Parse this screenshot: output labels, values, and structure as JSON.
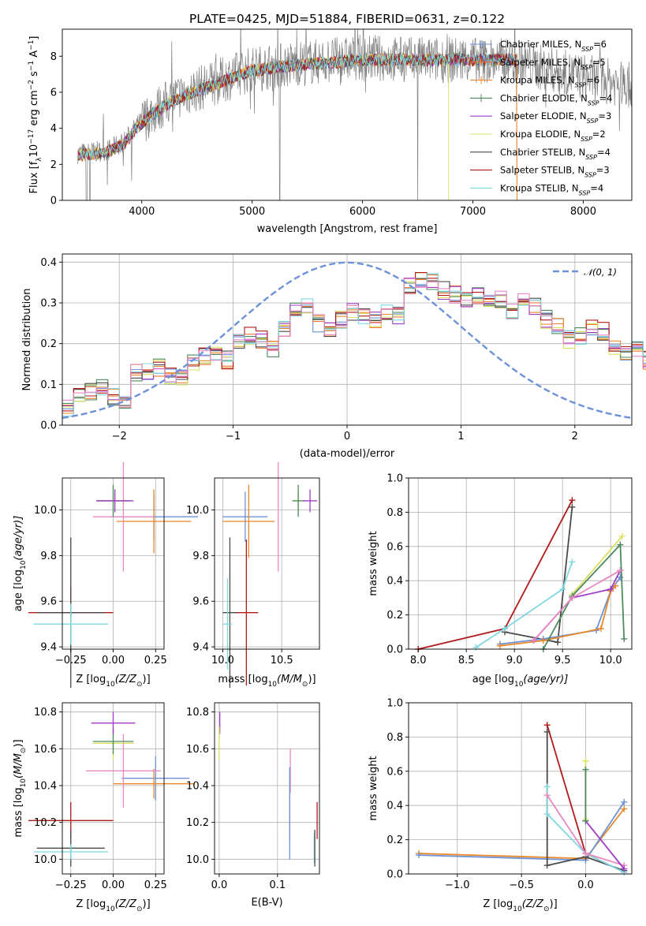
{
  "colors": {
    "chabrier_miles": "#6d92d8",
    "salpeter_miles": "#ee7733",
    "kroupa_miles": "#e8882a",
    "chabrier_elodie": "#4c8a5e",
    "salpeter_elodie": "#a03bc8",
    "kroupa_elodie": "#d8e060",
    "chabrier_stelib": "#4a4a4a",
    "salpeter_stelib": "#b01a1a",
    "kroupa_stelib": "#80d8e0",
    "pink": "#e888c0",
    "gaussian": "#6d92d8",
    "spectrum": "#808080",
    "grid": "#b0b0b0"
  },
  "legend_entries": [
    {
      "key": "chabrier_miles",
      "label": "Chabrier MILES, N",
      "sub": "SSP",
      "tail": "=6"
    },
    {
      "key": "salpeter_miles",
      "label": "Salpeter MILES, N",
      "sub": "SSP",
      "tail": "=5"
    },
    {
      "key": "kroupa_miles",
      "label": "Kroupa MILES, N",
      "sub": "SSP",
      "tail": "=6"
    },
    {
      "key": "chabrier_elodie",
      "label": "Chabrier ELODIE, N",
      "sub": "SSP",
      "tail": "=4"
    },
    {
      "key": "salpeter_elodie",
      "label": "Salpeter ELODIE, N",
      "sub": "SSP",
      "tail": "=3"
    },
    {
      "key": "kroupa_elodie",
      "label": "Kroupa ELODIE, N",
      "sub": "SSP",
      "tail": "=2"
    },
    {
      "key": "chabrier_stelib",
      "label": "Chabrier STELIB, N",
      "sub": "SSP",
      "tail": "=4"
    },
    {
      "key": "salpeter_stelib",
      "label": "Salpeter STELIB, N",
      "sub": "SSP",
      "tail": "=3"
    },
    {
      "key": "kroupa_stelib",
      "label": "Kroupa STELIB, N",
      "sub": "SSP",
      "tail": "=4"
    }
  ],
  "chart_data": [
    {
      "id": "spectrum",
      "type": "line",
      "title": "PLATE=0425, MJD=51884, FIBERID=0631, z=0.122",
      "xlabel": "wavelength [Angstrom, rest frame]",
      "ylabel_parts": [
        "Flux [f",
        "λ",
        "10",
        "−17",
        " erg cm",
        "−2",
        " s",
        "−1",
        " A",
        "−1",
        "]"
      ],
      "xlim": [
        3280,
        8440
      ],
      "ylim": [
        0,
        9.5
      ],
      "xticks": [
        4000,
        5000,
        6000,
        7000,
        8000
      ],
      "yticks": [
        0,
        2,
        4,
        6,
        8
      ],
      "grid": false,
      "legend": "upper right",
      "continuum_anchors": [
        [
          3420,
          2.6
        ],
        [
          3600,
          2.7
        ],
        [
          3700,
          2.8
        ],
        [
          3850,
          3.3
        ],
        [
          3950,
          4.1
        ],
        [
          4100,
          4.9
        ],
        [
          4300,
          5.7
        ],
        [
          4600,
          6.4
        ],
        [
          5000,
          7.3
        ],
        [
          5400,
          7.6
        ],
        [
          6000,
          7.9
        ],
        [
          6500,
          7.8
        ],
        [
          7000,
          7.8
        ],
        [
          7400,
          7.7
        ],
        [
          7800,
          7.1
        ],
        [
          8400,
          6.4
        ]
      ],
      "model_anchors": [
        [
          3420,
          2.5
        ],
        [
          3600,
          2.6
        ],
        [
          3700,
          2.7
        ],
        [
          3850,
          3.2
        ],
        [
          3950,
          4.0
        ],
        [
          4100,
          4.8
        ],
        [
          4300,
          5.6
        ],
        [
          4600,
          6.3
        ],
        [
          5000,
          7.2
        ],
        [
          5400,
          7.5
        ],
        [
          6000,
          7.8
        ],
        [
          6500,
          7.8
        ],
        [
          7000,
          7.8
        ],
        [
          7400,
          7.8
        ]
      ],
      "model_end_wavelength": {
        "kroupa_elodie": 6780,
        "kroupa_miles": 7400,
        "salpeter_miles": 7400
      }
    },
    {
      "id": "residuals",
      "type": "line",
      "xlabel": "(data-model)/error",
      "ylabel": "Normed distribution",
      "xlim": [
        -2.5,
        2.5
      ],
      "ylim": [
        0,
        0.42
      ],
      "xticks": [
        -2,
        -1,
        0,
        1,
        2
      ],
      "yticks": [
        0.0,
        0.1,
        0.2,
        0.3,
        0.4
      ],
      "grid": true,
      "legend": "upper right",
      "legend_label": "𝒩(0, 1)",
      "bin_width": 0.1,
      "bin_start": -2.5,
      "base_histogram": [
        0.04,
        0.07,
        0.08,
        0.09,
        0.07,
        0.06,
        0.13,
        0.13,
        0.14,
        0.12,
        0.12,
        0.15,
        0.17,
        0.18,
        0.16,
        0.2,
        0.22,
        0.21,
        0.19,
        0.24,
        0.28,
        0.29,
        0.25,
        0.24,
        0.26,
        0.28,
        0.27,
        0.26,
        0.28,
        0.27,
        0.34,
        0.36,
        0.35,
        0.33,
        0.32,
        0.31,
        0.32,
        0.3,
        0.31,
        0.28,
        0.3,
        0.29,
        0.26,
        0.24,
        0.21,
        0.22,
        0.24,
        0.23,
        0.19,
        0.18,
        0.19,
        0.16,
        0.14,
        0.13,
        0.12,
        0.12,
        0.11,
        0.12,
        0.1,
        0.09,
        0.07,
        0.07,
        0.07,
        0.07,
        0.06,
        0.06,
        0.05,
        0.05,
        0.05,
        0.05,
        0.05,
        0.05
      ]
    },
    {
      "id": "age_vs_Z",
      "type": "scatter",
      "xlabel_parts": [
        "Z [log",
        "10",
        "(Z/Z",
        "⊙",
        ")]"
      ],
      "ylabel_parts": [
        "age  [log",
        "10",
        "(age/yr)]"
      ],
      "xlim": [
        -0.3,
        0.3
      ],
      "ylim": [
        9.39,
        10.14
      ],
      "xticks": [
        -0.25,
        0.0,
        0.25
      ],
      "xtick_labels": [
        "−0.25",
        "0.00",
        "0.25"
      ],
      "yticks": [
        9.4,
        9.6,
        9.8,
        10.0
      ],
      "grid": true,
      "points": [
        {
          "key": "chabrier_miles",
          "x": 0.24,
          "y": 9.97,
          "xerr": 0.26,
          "yerr": 0.1
        },
        {
          "key": "kroupa_miles",
          "x": 0.24,
          "y": 9.95,
          "xerr": 0.22,
          "yerr": 0.14
        },
        {
          "key": "pink",
          "x": 0.06,
          "y": 9.97,
          "xerr": 0.18,
          "yerr": 0.24
        },
        {
          "key": "kroupa_elodie",
          "x": 0.0,
          "y": 10.04,
          "xerr": 0.1,
          "yerr": 0.06
        },
        {
          "key": "chabrier_elodie",
          "x": 0.0,
          "y": 10.04,
          "xerr": 0.1,
          "yerr": 0.07
        },
        {
          "key": "salpeter_elodie",
          "x": 0.01,
          "y": 10.04,
          "xerr": 0.11,
          "yerr": 0.05
        },
        {
          "key": "salpeter_stelib",
          "x": -0.25,
          "y": 9.55,
          "xerr": 0.25,
          "yerr": 0.11
        },
        {
          "key": "chabrier_stelib",
          "x": -0.25,
          "y": 9.55,
          "xerr": 0.2,
          "yerr": 0.33
        },
        {
          "key": "kroupa_stelib",
          "x": -0.25,
          "y": 9.5,
          "xerr": 0.22,
          "yerr": 0.09
        }
      ]
    },
    {
      "id": "age_vs_mass",
      "type": "scatter",
      "xlabel_parts": [
        "mass [log",
        "10",
        "(M/M",
        "⊙",
        ")]"
      ],
      "xlim": [
        9.93,
        10.82
      ],
      "ylim": [
        9.39,
        10.14
      ],
      "xticks": [
        10.0,
        10.5
      ],
      "xtick_labels": [
        "10.0",
        "10.5"
      ],
      "yticks": [
        9.4,
        9.6,
        9.8,
        10.0
      ],
      "grid": true,
      "points": [
        {
          "key": "chabrier_miles",
          "x": 10.19,
          "y": 9.97,
          "xerr": 0.19,
          "yerr": 0.11
        },
        {
          "key": "kroupa_miles",
          "x": 10.22,
          "y": 9.95,
          "xerr": 0.22,
          "yerr": 0.16
        },
        {
          "key": "pink",
          "x": 10.47,
          "y": 9.97,
          "xerr": 0.0,
          "yerr": 0.24
        },
        {
          "key": "kroupa_elodie",
          "x": 10.64,
          "y": 10.04,
          "xerr": 0.05,
          "yerr": 0.06
        },
        {
          "key": "chabrier_elodie",
          "x": 10.64,
          "y": 10.04,
          "xerr": 0.05,
          "yerr": 0.07
        },
        {
          "key": "salpeter_elodie",
          "x": 10.74,
          "y": 10.04,
          "xerr": 0.06,
          "yerr": 0.05
        },
        {
          "key": "salpeter_stelib",
          "x": 10.2,
          "y": 9.55,
          "xerr": 0.1,
          "yerr": 0.32
        },
        {
          "key": "chabrier_stelib",
          "x": 10.06,
          "y": 9.55,
          "xerr": 0.06,
          "yerr": 0.33
        },
        {
          "key": "kroupa_stelib",
          "x": 10.04,
          "y": 9.5,
          "xerr": 0.04,
          "yerr": 0.2
        }
      ]
    },
    {
      "id": "weight_vs_age",
      "type": "line",
      "xlabel_parts": [
        "age  [log",
        "10",
        "(age/yr)]"
      ],
      "ylabel": "mass weight",
      "xlim": [
        7.9,
        10.22
      ],
      "ylim": [
        0,
        1.0
      ],
      "xticks": [
        8.0,
        8.5,
        9.0,
        9.5,
        10.0
      ],
      "xtick_labels": [
        "8.0",
        "8.5",
        "9.0",
        "9.5",
        "10.0"
      ],
      "yticks": [
        0.0,
        0.2,
        0.4,
        0.6,
        0.8,
        1.0
      ],
      "grid": true,
      "series": [
        {
          "key": "salpeter_stelib",
          "x": [
            8.0,
            8.9,
            9.6
          ],
          "y": [
            0.0,
            0.12,
            0.87
          ]
        },
        {
          "key": "chabrier_stelib",
          "x": [
            8.9,
            9.45,
            9.6
          ],
          "y": [
            0.1,
            0.04,
            0.83
          ]
        },
        {
          "key": "kroupa_stelib",
          "x": [
            8.6,
            8.9,
            9.5,
            9.6
          ],
          "y": [
            0.01,
            0.12,
            0.35,
            0.51
          ]
        },
        {
          "key": "chabrier_miles",
          "x": [
            8.85,
            9.3,
            9.85,
            10.0,
            10.1
          ],
          "y": [
            0.03,
            0.06,
            0.11,
            0.34,
            0.42
          ]
        },
        {
          "key": "kroupa_miles",
          "x": [
            8.85,
            9.3,
            9.9,
            10.0,
            10.05
          ],
          "y": [
            0.02,
            0.05,
            0.12,
            0.34,
            0.37
          ]
        },
        {
          "key": "salpeter_elodie",
          "x": [
            9.2,
            9.6,
            10.0,
            10.1
          ],
          "y": [
            0.05,
            0.3,
            0.35,
            0.46
          ]
        },
        {
          "key": "kroupa_elodie",
          "x": [
            9.6,
            10.12
          ],
          "y": [
            0.32,
            0.66
          ]
        },
        {
          "key": "chabrier_elodie",
          "x": [
            9.3,
            9.6,
            10.1,
            10.14
          ],
          "y": [
            0.0,
            0.31,
            0.61,
            0.06
          ]
        },
        {
          "key": "pink",
          "x": [
            9.2,
            9.6,
            10.1
          ],
          "y": [
            0.05,
            0.3,
            0.46
          ]
        }
      ]
    },
    {
      "id": "mass_vs_Z",
      "type": "scatter",
      "xlabel_parts": [
        "Z [log",
        "10",
        "(Z/Z",
        "⊙",
        ")]"
      ],
      "ylabel_parts": [
        "mass [log",
        "10",
        "(M/M",
        "⊙",
        ")]"
      ],
      "xlim": [
        -0.3,
        0.3
      ],
      "ylim": [
        9.92,
        10.85
      ],
      "xticks": [
        -0.25,
        0.0,
        0.25
      ],
      "xtick_labels": [
        "−0.25",
        "0.00",
        "0.25"
      ],
      "yticks": [
        10.0,
        10.2,
        10.4,
        10.6,
        10.8
      ],
      "grid": true,
      "points": [
        {
          "key": "chabrier_miles",
          "x": 0.25,
          "y": 10.44,
          "xerr": 0.2,
          "yerr": 0.12
        },
        {
          "key": "kroupa_miles",
          "x": 0.24,
          "y": 10.41,
          "xerr": 0.24,
          "yerr": 0.08
        },
        {
          "key": "pink",
          "x": 0.06,
          "y": 10.48,
          "xerr": 0.22,
          "yerr": 0.2
        },
        {
          "key": "kroupa_elodie",
          "x": 0.0,
          "y": 10.63,
          "xerr": 0.12,
          "yerr": 0.09
        },
        {
          "key": "chabrier_elodie",
          "x": 0.0,
          "y": 10.64,
          "xerr": 0.12,
          "yerr": 0.07
        },
        {
          "key": "salpeter_elodie",
          "x": 0.0,
          "y": 10.74,
          "xerr": 0.13,
          "yerr": 0.06
        },
        {
          "key": "salpeter_stelib",
          "x": -0.25,
          "y": 10.21,
          "xerr": 0.25,
          "yerr": 0.1
        },
        {
          "key": "chabrier_stelib",
          "x": -0.25,
          "y": 10.06,
          "xerr": 0.2,
          "yerr": 0.1
        },
        {
          "key": "kroupa_stelib",
          "x": -0.25,
          "y": 10.04,
          "xerr": 0.22,
          "yerr": 0.04
        }
      ]
    },
    {
      "id": "mass_vs_ebv",
      "type": "scatter",
      "xlabel": "E(B-V)",
      "xlim": [
        -0.008,
        0.172
      ],
      "ylim": [
        9.92,
        10.85
      ],
      "xticks": [
        0.0,
        0.1
      ],
      "xtick_labels": [
        "0.0",
        "0.1"
      ],
      "yticks": [
        10.0,
        10.2,
        10.4,
        10.6,
        10.8
      ],
      "grid": true,
      "points": [
        {
          "key": "salpeter_elodie",
          "x": 0.001,
          "y": 10.74,
          "xerr": 0.0,
          "yerr": 0.06
        },
        {
          "key": "kroupa_elodie",
          "x": 0.0,
          "y": 10.63,
          "xerr": 0.0,
          "yerr": 0.09
        },
        {
          "key": "pink",
          "x": 0.122,
          "y": 10.48,
          "xerr": 0.0,
          "yerr": 0.12
        },
        {
          "key": "kroupa_miles",
          "x": 0.121,
          "y": 10.3,
          "xerr": 0.0,
          "yerr": 0.2
        },
        {
          "key": "chabrier_miles",
          "x": 0.121,
          "y": 10.25,
          "xerr": 0.0,
          "yerr": 0.25
        },
        {
          "key": "salpeter_stelib",
          "x": 0.168,
          "y": 10.21,
          "xerr": 0.0,
          "yerr": 0.1
        },
        {
          "key": "kroupa_stelib",
          "x": 0.163,
          "y": 10.06,
          "xerr": 0.0,
          "yerr": 0.08
        },
        {
          "key": "chabrier_stelib",
          "x": 0.164,
          "y": 10.06,
          "xerr": 0.0,
          "yerr": 0.1
        }
      ]
    },
    {
      "id": "weight_vs_Z",
      "type": "line",
      "xlabel_parts": [
        "Z [log",
        "10",
        "(Z/Z",
        "⊙",
        ")]"
      ],
      "ylabel": "mass weight",
      "xlim": [
        -1.38,
        0.36
      ],
      "ylim": [
        0,
        1.0
      ],
      "xticks": [
        -1.0,
        -0.5,
        0.0
      ],
      "xtick_labels": [
        "−1.0",
        "−0.5",
        "0.0"
      ],
      "yticks": [
        0.0,
        0.2,
        0.4,
        0.6,
        0.8,
        1.0
      ],
      "grid": true,
      "series": [
        {
          "key": "kroupa_miles",
          "x": [
            -1.3,
            0.0,
            0.3
          ],
          "y": [
            0.12,
            0.09,
            0.38
          ]
        },
        {
          "key": "chabrier_miles",
          "x": [
            -1.3,
            0.0,
            0.3
          ],
          "y": [
            0.11,
            0.08,
            0.42
          ]
        },
        {
          "key": "salpeter_stelib",
          "x": [
            -0.3,
            0.0,
            0.3
          ],
          "y": [
            0.87,
            0.12,
            0.01
          ]
        },
        {
          "key": "chabrier_stelib",
          "x": [
            -0.3,
            -0.3,
            0.0,
            0.3
          ],
          "y": [
            0.83,
            0.05,
            0.1,
            0.02
          ]
        },
        {
          "key": "kroupa_stelib",
          "x": [
            -0.3,
            -0.3,
            0.0,
            0.3
          ],
          "y": [
            0.51,
            0.35,
            0.12,
            0.01
          ]
        },
        {
          "key": "pink",
          "x": [
            -0.3,
            0.0,
            0.3
          ],
          "y": [
            0.46,
            0.12,
            0.05
          ]
        },
        {
          "key": "salpeter_elodie",
          "x": [
            0.0,
            0.3
          ],
          "y": [
            0.31,
            0.03
          ]
        },
        {
          "key": "kroupa_elodie",
          "x": [
            0.0,
            0.0
          ],
          "y": [
            0.66,
            0.32
          ]
        },
        {
          "key": "chabrier_elodie",
          "x": [
            0.0,
            0.0
          ],
          "y": [
            0.61,
            0.31
          ]
        }
      ]
    }
  ]
}
